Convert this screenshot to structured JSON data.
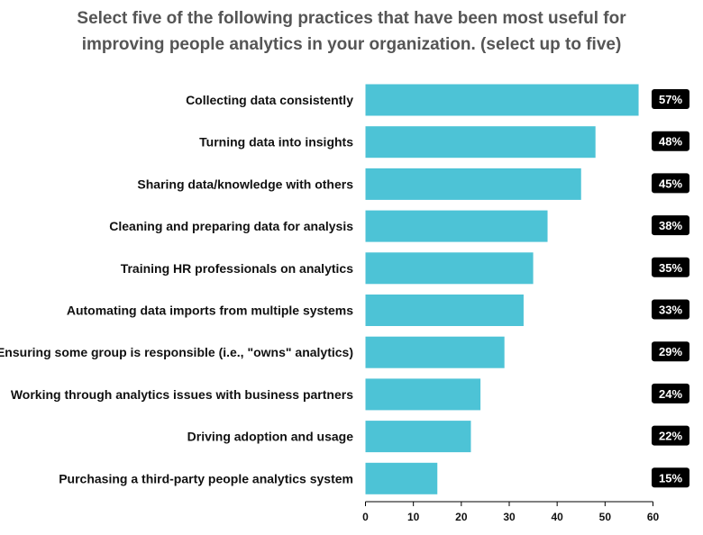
{
  "chart_data": {
    "type": "bar",
    "orientation": "horizontal",
    "title_lines": [
      "Select five of the following practices that have been most useful for",
      "improving people analytics in your organization. (select up to five)"
    ],
    "categories": [
      "Collecting data consistently",
      "Turning data into insights",
      "Sharing data/knowledge with others",
      "Cleaning and preparing data for analysis",
      "Training HR professionals on analytics",
      "Automating data imports from multiple systems",
      "Ensuring some group is responsible (i.e., \"owns\" analytics)",
      "Working through analytics issues with business partners",
      "Driving adoption and usage",
      "Purchasing a third-party people analytics system"
    ],
    "values": [
      57,
      48,
      45,
      38,
      35,
      33,
      29,
      24,
      22,
      15
    ],
    "value_labels": [
      "57%",
      "48%",
      "45%",
      "38%",
      "35%",
      "33%",
      "29%",
      "24%",
      "22%",
      "15%"
    ],
    "xlim": [
      0,
      60
    ],
    "xticks": [
      0,
      10,
      20,
      30,
      40,
      50,
      60
    ],
    "grid": false,
    "legend": "none",
    "colors": {
      "bar": "#4dc3d6",
      "label_box": "#000000",
      "label_text": "#ffffff",
      "title": "#555555",
      "axis": "#000000"
    }
  }
}
